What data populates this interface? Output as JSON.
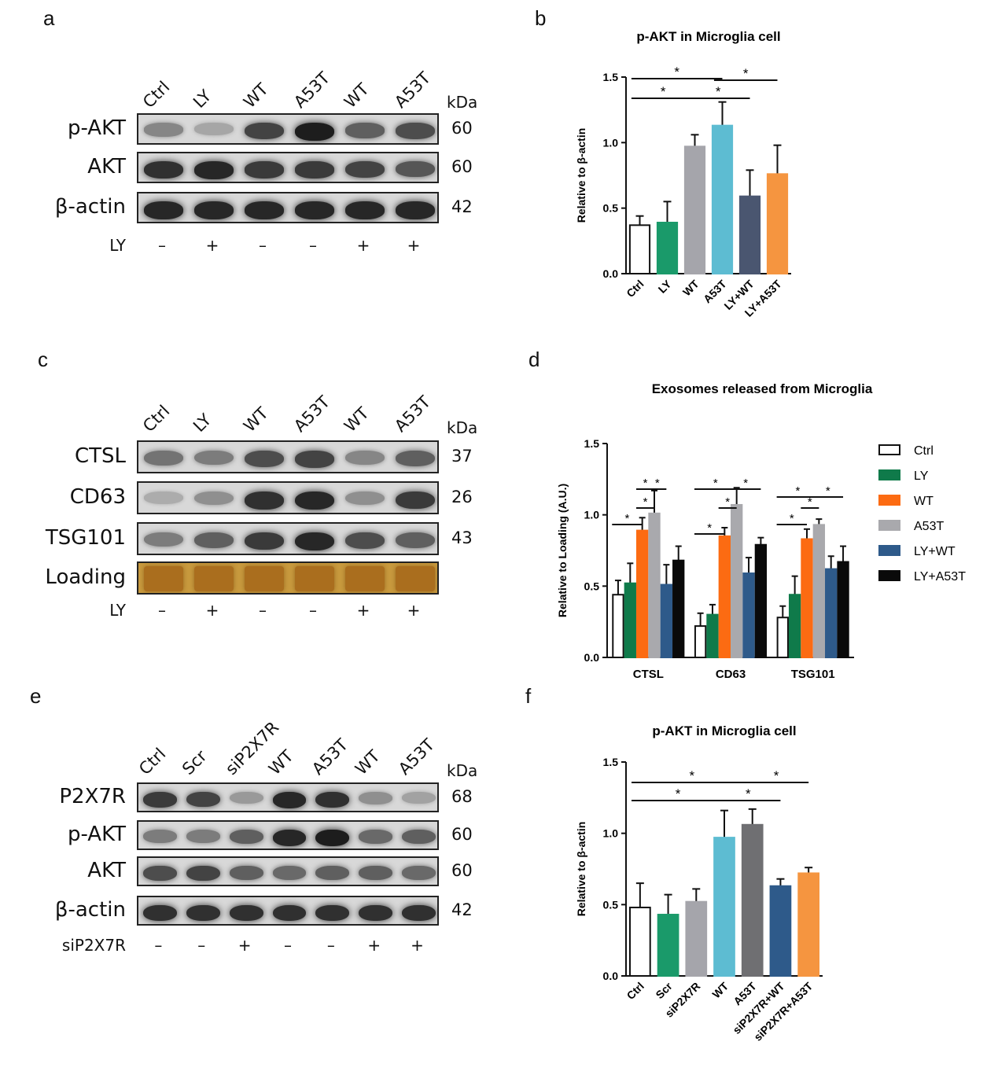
{
  "panels": {
    "a": {
      "letter": "a",
      "lanes": [
        "Ctrl",
        "LY",
        "WT",
        "A53T",
        "WT",
        "A53T"
      ],
      "kda_label": "kDa",
      "rows": [
        {
          "name": "p-AKT",
          "size": "60",
          "intensity": [
            0.35,
            0.18,
            0.7,
            0.9,
            0.55,
            0.65
          ]
        },
        {
          "name": "AKT",
          "size": "60",
          "intensity": [
            0.8,
            0.85,
            0.75,
            0.75,
            0.7,
            0.6
          ]
        },
        {
          "name": "β-actin",
          "size": "42",
          "intensity": [
            0.85,
            0.85,
            0.85,
            0.85,
            0.85,
            0.85
          ]
        }
      ],
      "treatment": {
        "label": "LY",
        "signs": [
          "–",
          "+",
          "–",
          "–",
          "+",
          "+"
        ]
      }
    },
    "c": {
      "letter": "c",
      "lanes": [
        "Ctrl",
        "LY",
        "WT",
        "A53T",
        "WT",
        "A53T"
      ],
      "kda_label": "kDa",
      "rows": [
        {
          "name": "CTSL",
          "size": "37",
          "intensity": [
            0.45,
            0.4,
            0.65,
            0.7,
            0.35,
            0.55
          ]
        },
        {
          "name": "CD63",
          "size": "26",
          "intensity": [
            0.15,
            0.3,
            0.8,
            0.85,
            0.3,
            0.75
          ]
        },
        {
          "name": "TSG101",
          "size": "43",
          "intensity": [
            0.4,
            0.55,
            0.75,
            0.85,
            0.65,
            0.55
          ]
        },
        {
          "name": "Loading",
          "size": "",
          "intensity": [
            0.5,
            0.5,
            0.5,
            0.5,
            0.5,
            0.5
          ],
          "loading": true
        }
      ],
      "treatment": {
        "label": "LY",
        "signs": [
          "–",
          "+",
          "–",
          "–",
          "+",
          "+"
        ]
      }
    },
    "e": {
      "letter": "e",
      "lanes": [
        "Ctrl",
        "Scr",
        "siP2X7R",
        "WT",
        "A53T",
        "WT",
        "A53T"
      ],
      "kda_label": "kDa",
      "rows": [
        {
          "name": "P2X7R",
          "size": "68",
          "intensity": [
            0.75,
            0.7,
            0.25,
            0.85,
            0.8,
            0.3,
            0.2
          ]
        },
        {
          "name": "p-AKT",
          "size": "60",
          "intensity": [
            0.4,
            0.4,
            0.55,
            0.85,
            0.9,
            0.5,
            0.55
          ]
        },
        {
          "name": "AKT",
          "size": "60",
          "intensity": [
            0.65,
            0.7,
            0.55,
            0.5,
            0.55,
            0.55,
            0.5
          ]
        },
        {
          "name": "β-actin",
          "size": "42",
          "intensity": [
            0.8,
            0.8,
            0.8,
            0.8,
            0.8,
            0.8,
            0.8
          ]
        }
      ],
      "treatment": {
        "label": "siP2X7R",
        "signs": [
          "–",
          "–",
          "+",
          "–",
          "–",
          "+",
          "+"
        ]
      }
    }
  },
  "chart_data": [
    {
      "panel": "b",
      "type": "bar",
      "title": "p-AKT  in Microglia cell",
      "ylabel": "Relative to β-actin",
      "xlabel": "",
      "ylim": [
        0,
        1.5
      ],
      "yticks": [
        "0.0",
        "0.5",
        "1.0",
        "1.5"
      ],
      "categories": [
        "Ctrl",
        "LY",
        "WT",
        "A53T",
        "LY+WT",
        "LY+A53T"
      ],
      "values": [
        0.37,
        0.39,
        0.97,
        1.13,
        0.59,
        0.76
      ],
      "errors": [
        0.07,
        0.16,
        0.09,
        0.18,
        0.2,
        0.22
      ],
      "colors": [
        "#ffffff",
        "#1a9a6a",
        "#a5a5ab",
        "#5dbcd2",
        "#4a5670",
        "#f59540"
      ],
      "significance_mark": "*",
      "significance": [
        [
          0,
          3
        ],
        [
          3,
          5
        ],
        [
          0,
          2
        ],
        [
          2,
          4
        ]
      ]
    },
    {
      "panel": "d",
      "type": "bar",
      "title": "Exosomes released from Microglia",
      "ylabel": "Relative to Loading (A.U.)",
      "xlabel": "",
      "ylim": [
        0,
        1.5
      ],
      "yticks": [
        "0.0",
        "0.5",
        "1.0",
        "1.5"
      ],
      "categories": [
        "CTSL",
        "CD63",
        "TSG101"
      ],
      "legend_position": "right",
      "series": [
        {
          "name": "Ctrl",
          "color": "#ffffff",
          "values": [
            0.44,
            0.22,
            0.28
          ],
          "errors": [
            0.1,
            0.09,
            0.08
          ]
        },
        {
          "name": "LY",
          "color": "#0f7a4a",
          "values": [
            0.52,
            0.3,
            0.44
          ],
          "errors": [
            0.14,
            0.07,
            0.13
          ]
        },
        {
          "name": "WT",
          "color": "#fc6b12",
          "values": [
            0.89,
            0.85,
            0.83
          ],
          "errors": [
            0.09,
            0.06,
            0.07
          ]
        },
        {
          "name": "A53T",
          "color": "#a9a9ad",
          "values": [
            1.01,
            1.07,
            0.93
          ],
          "errors": [
            0.16,
            0.12,
            0.04
          ]
        },
        {
          "name": "LY+WT",
          "color": "#2e5a8a",
          "values": [
            0.51,
            0.59,
            0.62
          ],
          "errors": [
            0.14,
            0.11,
            0.09
          ]
        },
        {
          "name": "LY+A53T",
          "color": "#0a0a0a",
          "values": [
            0.68,
            0.79,
            0.67
          ],
          "errors": [
            0.1,
            0.05,
            0.11
          ]
        }
      ],
      "significance_mark": "*",
      "significance": [
        [
          0,
          2,
          3
        ],
        [
          0,
          3,
          4
        ],
        [
          0,
          0,
          2
        ],
        [
          0,
          2,
          3,
          "low"
        ],
        [
          1,
          0,
          3
        ],
        [
          1,
          3,
          5
        ],
        [
          1,
          0,
          2
        ],
        [
          1,
          2,
          3,
          "low"
        ],
        [
          2,
          0,
          3
        ],
        [
          2,
          3,
          5
        ],
        [
          2,
          0,
          2
        ],
        [
          2,
          2,
          3,
          "low"
        ]
      ]
    },
    {
      "panel": "f",
      "type": "bar",
      "title": "p-AKT  in Microglia cell",
      "ylabel": "Relative to β-actin",
      "xlabel": "",
      "ylim": [
        0,
        1.5
      ],
      "yticks": [
        "0.0",
        "0.5",
        "1.0",
        "1.5"
      ],
      "categories": [
        "Ctrl",
        "Scr",
        "siP2X7R",
        "WT",
        "A53T",
        "siP2X7R+WT",
        "siP2X7R+A53T"
      ],
      "values": [
        0.48,
        0.43,
        0.52,
        0.97,
        1.06,
        0.63,
        0.72
      ],
      "errors": [
        0.17,
        0.14,
        0.09,
        0.19,
        0.11,
        0.05,
        0.04
      ],
      "colors": [
        "#ffffff",
        "#1a9a6a",
        "#a5a5ab",
        "#5dbcd2",
        "#6f6f72",
        "#2e5a8a",
        "#f59540"
      ],
      "significance_mark": "*",
      "significance": [
        [
          0,
          4
        ],
        [
          4,
          6
        ],
        [
          0,
          3
        ],
        [
          3,
          5
        ]
      ]
    }
  ],
  "chart_letters": {
    "b": "b",
    "d": "d",
    "f": "f"
  }
}
